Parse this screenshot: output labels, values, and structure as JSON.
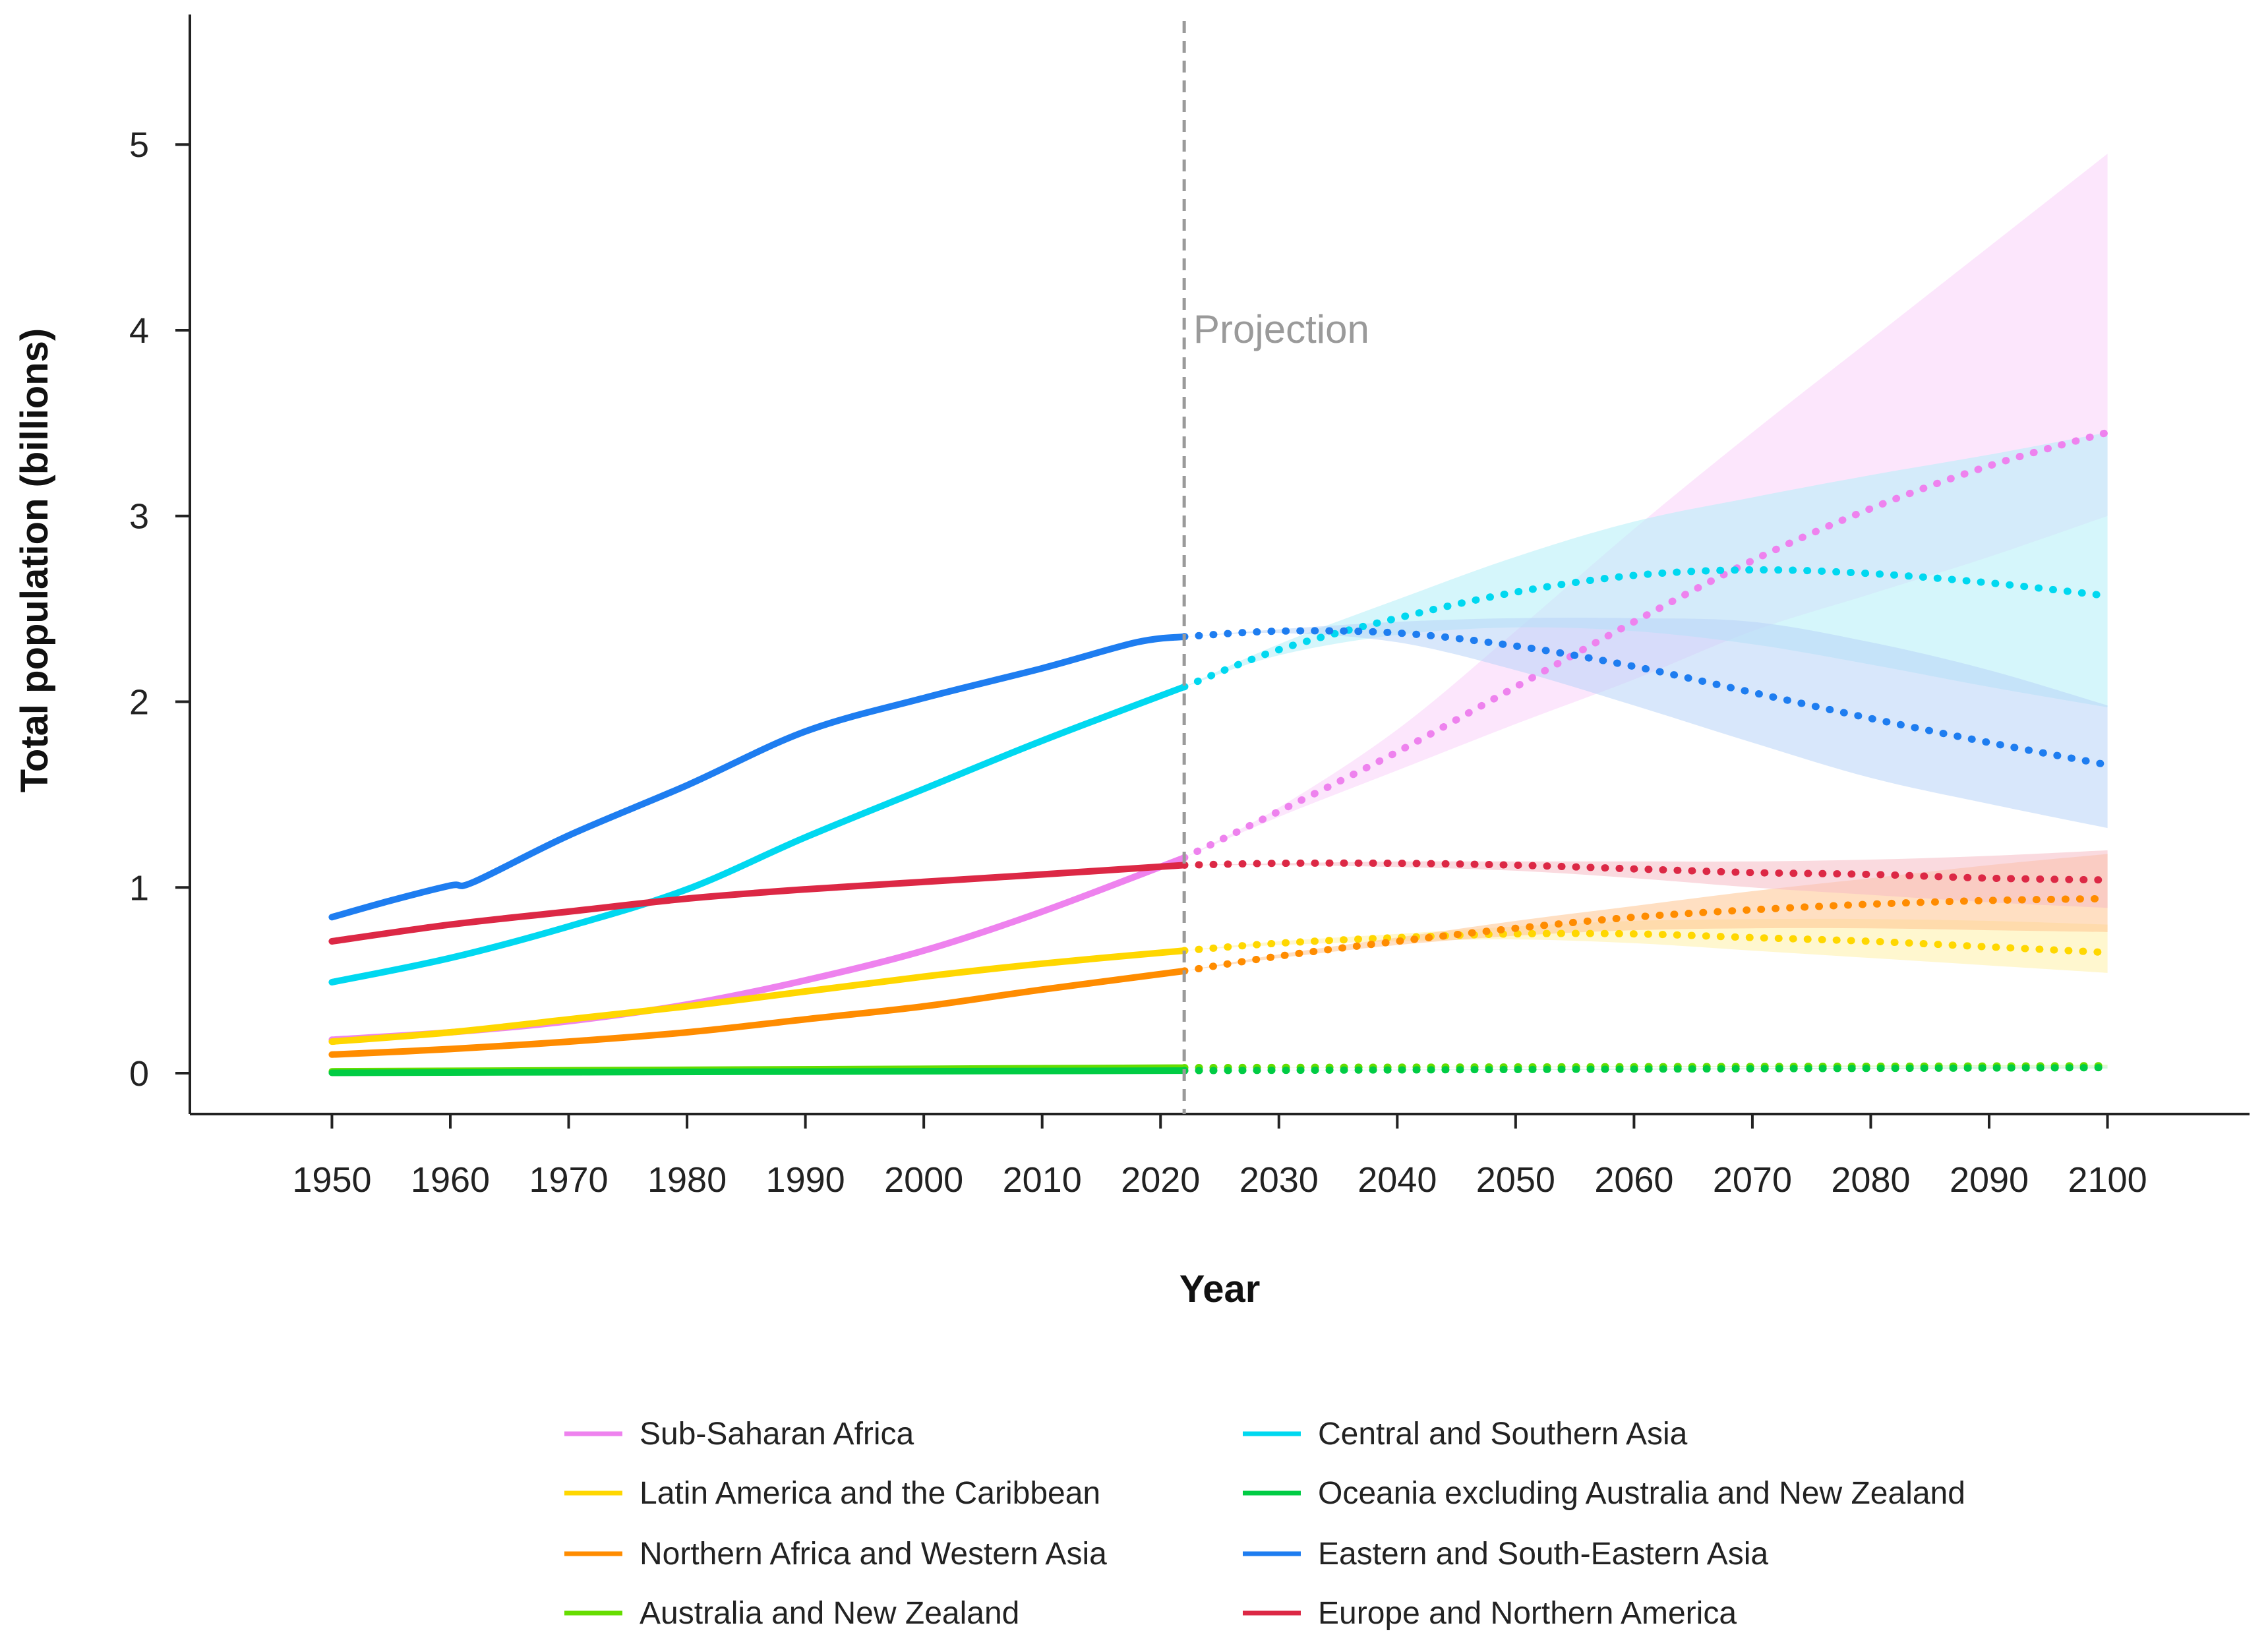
{
  "chart_data": {
    "type": "line",
    "xlabel": "Year",
    "ylabel": "Total population (billions)",
    "xlim": [
      1938,
      2112
    ],
    "ylim": [
      -0.22,
      5.7
    ],
    "xticks": [
      "1950",
      "1960",
      "1970",
      "1980",
      "1990",
      "2000",
      "2010",
      "2020",
      "2030",
      "2040",
      "2050",
      "2060",
      "2070",
      "2080",
      "2090",
      "2100"
    ],
    "yticks": [
      "0",
      "1",
      "2",
      "3",
      "4",
      "5"
    ],
    "projection_start": 2022,
    "annotation": "Projection",
    "series": [
      {
        "name": "Sub-Saharan Africa",
        "color": "#ee82ee",
        "band_color": "#f9d2f9",
        "historical": {
          "x": [
            1950,
            1960,
            1970,
            1980,
            1990,
            2000,
            2010,
            2022
          ],
          "y": [
            0.18,
            0.22,
            0.28,
            0.37,
            0.5,
            0.66,
            0.87,
            1.16
          ]
        },
        "projection": {
          "x": [
            2022,
            2030,
            2040,
            2050,
            2060,
            2070,
            2080,
            2090,
            2100
          ],
          "y": [
            1.16,
            1.41,
            1.73,
            2.08,
            2.43,
            2.76,
            3.04,
            3.27,
            3.45
          ]
        },
        "upper": {
          "x": [
            2022,
            2030,
            2040,
            2050,
            2060,
            2070,
            2080,
            2090,
            2100
          ],
          "y": [
            1.16,
            1.43,
            1.85,
            2.38,
            2.93,
            3.45,
            3.95,
            4.45,
            4.95
          ]
        },
        "lower": {
          "x": [
            2022,
            2030,
            2040,
            2050,
            2060,
            2070,
            2080,
            2090,
            2100
          ],
          "y": [
            1.16,
            1.38,
            1.63,
            1.88,
            2.12,
            2.38,
            2.58,
            2.78,
            3.0
          ]
        }
      },
      {
        "name": "Latin America and the Caribbean",
        "color": "#ffd700",
        "band_color": "#fff0a8",
        "historical": {
          "x": [
            1950,
            1960,
            1970,
            1980,
            1990,
            2000,
            2010,
            2022
          ],
          "y": [
            0.17,
            0.22,
            0.29,
            0.36,
            0.44,
            0.52,
            0.59,
            0.66
          ]
        },
        "projection": {
          "x": [
            2022,
            2030,
            2040,
            2050,
            2060,
            2070,
            2080,
            2090,
            2100
          ],
          "y": [
            0.66,
            0.7,
            0.73,
            0.75,
            0.75,
            0.73,
            0.71,
            0.68,
            0.65
          ]
        },
        "upper": {
          "x": [
            2022,
            2030,
            2040,
            2050,
            2060,
            2070,
            2080,
            2090,
            2100
          ],
          "y": [
            0.66,
            0.71,
            0.75,
            0.79,
            0.82,
            0.83,
            0.83,
            0.82,
            0.8
          ]
        },
        "lower": {
          "x": [
            2022,
            2030,
            2040,
            2050,
            2060,
            2070,
            2080,
            2090,
            2100
          ],
          "y": [
            0.66,
            0.69,
            0.71,
            0.72,
            0.7,
            0.66,
            0.62,
            0.58,
            0.54
          ]
        }
      },
      {
        "name": "Northern Africa and Western Asia",
        "color": "#ff8c00",
        "band_color": "#ffc590",
        "historical": {
          "x": [
            1950,
            1960,
            1970,
            1980,
            1990,
            2000,
            2010,
            2022
          ],
          "y": [
            0.1,
            0.13,
            0.17,
            0.22,
            0.29,
            0.36,
            0.45,
            0.55
          ]
        },
        "projection": {
          "x": [
            2022,
            2030,
            2040,
            2050,
            2060,
            2070,
            2080,
            2090,
            2100
          ],
          "y": [
            0.55,
            0.63,
            0.71,
            0.78,
            0.84,
            0.88,
            0.91,
            0.93,
            0.94
          ]
        },
        "upper": {
          "x": [
            2022,
            2030,
            2040,
            2050,
            2060,
            2070,
            2080,
            2090,
            2100
          ],
          "y": [
            0.55,
            0.64,
            0.73,
            0.82,
            0.9,
            0.98,
            1.05,
            1.12,
            1.18
          ]
        },
        "lower": {
          "x": [
            2022,
            2030,
            2040,
            2050,
            2060,
            2070,
            2080,
            2090,
            2100
          ],
          "y": [
            0.55,
            0.62,
            0.69,
            0.74,
            0.77,
            0.78,
            0.78,
            0.77,
            0.76
          ]
        }
      },
      {
        "name": "Australia and New Zealand",
        "color": "#66dd00",
        "band_color": "#cdf5a8",
        "historical": {
          "x": [
            1950,
            2022
          ],
          "y": [
            0.01,
            0.03
          ]
        },
        "projection": {
          "x": [
            2022,
            2100
          ],
          "y": [
            0.03,
            0.04
          ]
        },
        "upper": {
          "x": [
            2022,
            2100
          ],
          "y": [
            0.03,
            0.045
          ]
        },
        "lower": {
          "x": [
            2022,
            2100
          ],
          "y": [
            0.03,
            0.035
          ]
        }
      },
      {
        "name": "Central and Southern Asia",
        "color": "#00d8f0",
        "band_color": "#b2eef8",
        "historical": {
          "x": [
            1950,
            1960,
            1970,
            1980,
            1990,
            2000,
            2010,
            2022
          ],
          "y": [
            0.49,
            0.62,
            0.79,
            0.99,
            1.27,
            1.53,
            1.79,
            2.08
          ]
        },
        "projection": {
          "x": [
            2022,
            2030,
            2040,
            2050,
            2060,
            2070,
            2080,
            2090,
            2100
          ],
          "y": [
            2.08,
            2.28,
            2.45,
            2.59,
            2.68,
            2.71,
            2.69,
            2.64,
            2.57
          ]
        },
        "upper": {
          "x": [
            2022,
            2030,
            2040,
            2050,
            2060,
            2070,
            2080,
            2090,
            2100
          ],
          "y": [
            2.08,
            2.31,
            2.55,
            2.78,
            2.97,
            3.1,
            3.22,
            3.33,
            3.45
          ]
        },
        "lower": {
          "x": [
            2022,
            2030,
            2040,
            2050,
            2060,
            2070,
            2080,
            2090,
            2100
          ],
          "y": [
            2.08,
            2.25,
            2.36,
            2.4,
            2.38,
            2.31,
            2.2,
            2.08,
            1.97
          ]
        }
      },
      {
        "name": "Oceania excluding Australia and New Zealand",
        "color": "#00cc44",
        "band_color": "#b3efc5",
        "historical": {
          "x": [
            1950,
            2022
          ],
          "y": [
            0.002,
            0.014
          ]
        },
        "projection": {
          "x": [
            2022,
            2100
          ],
          "y": [
            0.014,
            0.03
          ]
        },
        "upper": {
          "x": [
            2022,
            2100
          ],
          "y": [
            0.014,
            0.035
          ]
        },
        "lower": {
          "x": [
            2022,
            2100
          ],
          "y": [
            0.014,
            0.025
          ]
        }
      },
      {
        "name": "Eastern and South-Eastern Asia",
        "color": "#1e7df0",
        "band_color": "#b8d4f8",
        "historical": {
          "x": [
            1950,
            1955,
            1960,
            1962,
            1970,
            1980,
            1990,
            2000,
            2010,
            2018,
            2022
          ],
          "y": [
            0.84,
            0.93,
            1.01,
            1.03,
            1.28,
            1.55,
            1.84,
            2.02,
            2.18,
            2.32,
            2.35
          ]
        },
        "projection": {
          "x": [
            2022,
            2030,
            2040,
            2050,
            2060,
            2070,
            2080,
            2090,
            2100
          ],
          "y": [
            2.35,
            2.38,
            2.37,
            2.3,
            2.19,
            2.05,
            1.91,
            1.78,
            1.66
          ]
        },
        "upper": {
          "x": [
            2022,
            2030,
            2040,
            2050,
            2060,
            2070,
            2080,
            2090,
            2100
          ],
          "y": [
            2.35,
            2.39,
            2.43,
            2.45,
            2.45,
            2.43,
            2.32,
            2.17,
            1.98
          ]
        },
        "lower": {
          "x": [
            2022,
            2030,
            2040,
            2050,
            2060,
            2070,
            2080,
            2090,
            2100
          ],
          "y": [
            2.35,
            2.37,
            2.32,
            2.17,
            1.98,
            1.78,
            1.59,
            1.45,
            1.32
          ]
        }
      },
      {
        "name": "Europe and Northern America",
        "color": "#dc2845",
        "band_color": "#f6bcc4",
        "historical": {
          "x": [
            1950,
            1960,
            1970,
            1980,
            1990,
            2000,
            2010,
            2022
          ],
          "y": [
            0.71,
            0.8,
            0.87,
            0.94,
            0.99,
            1.03,
            1.07,
            1.12
          ]
        },
        "projection": {
          "x": [
            2022,
            2030,
            2040,
            2050,
            2060,
            2070,
            2080,
            2090,
            2100
          ],
          "y": [
            1.12,
            1.13,
            1.13,
            1.12,
            1.1,
            1.08,
            1.07,
            1.05,
            1.04
          ]
        },
        "upper": {
          "x": [
            2022,
            2030,
            2040,
            2050,
            2060,
            2070,
            2080,
            2090,
            2100
          ],
          "y": [
            1.12,
            1.13,
            1.14,
            1.14,
            1.14,
            1.14,
            1.15,
            1.17,
            1.2
          ]
        },
        "lower": {
          "x": [
            2022,
            2030,
            2040,
            2050,
            2060,
            2070,
            2080,
            2090,
            2100
          ],
          "y": [
            1.12,
            1.12,
            1.11,
            1.09,
            1.05,
            1.0,
            0.96,
            0.92,
            0.89
          ]
        }
      }
    ]
  }
}
